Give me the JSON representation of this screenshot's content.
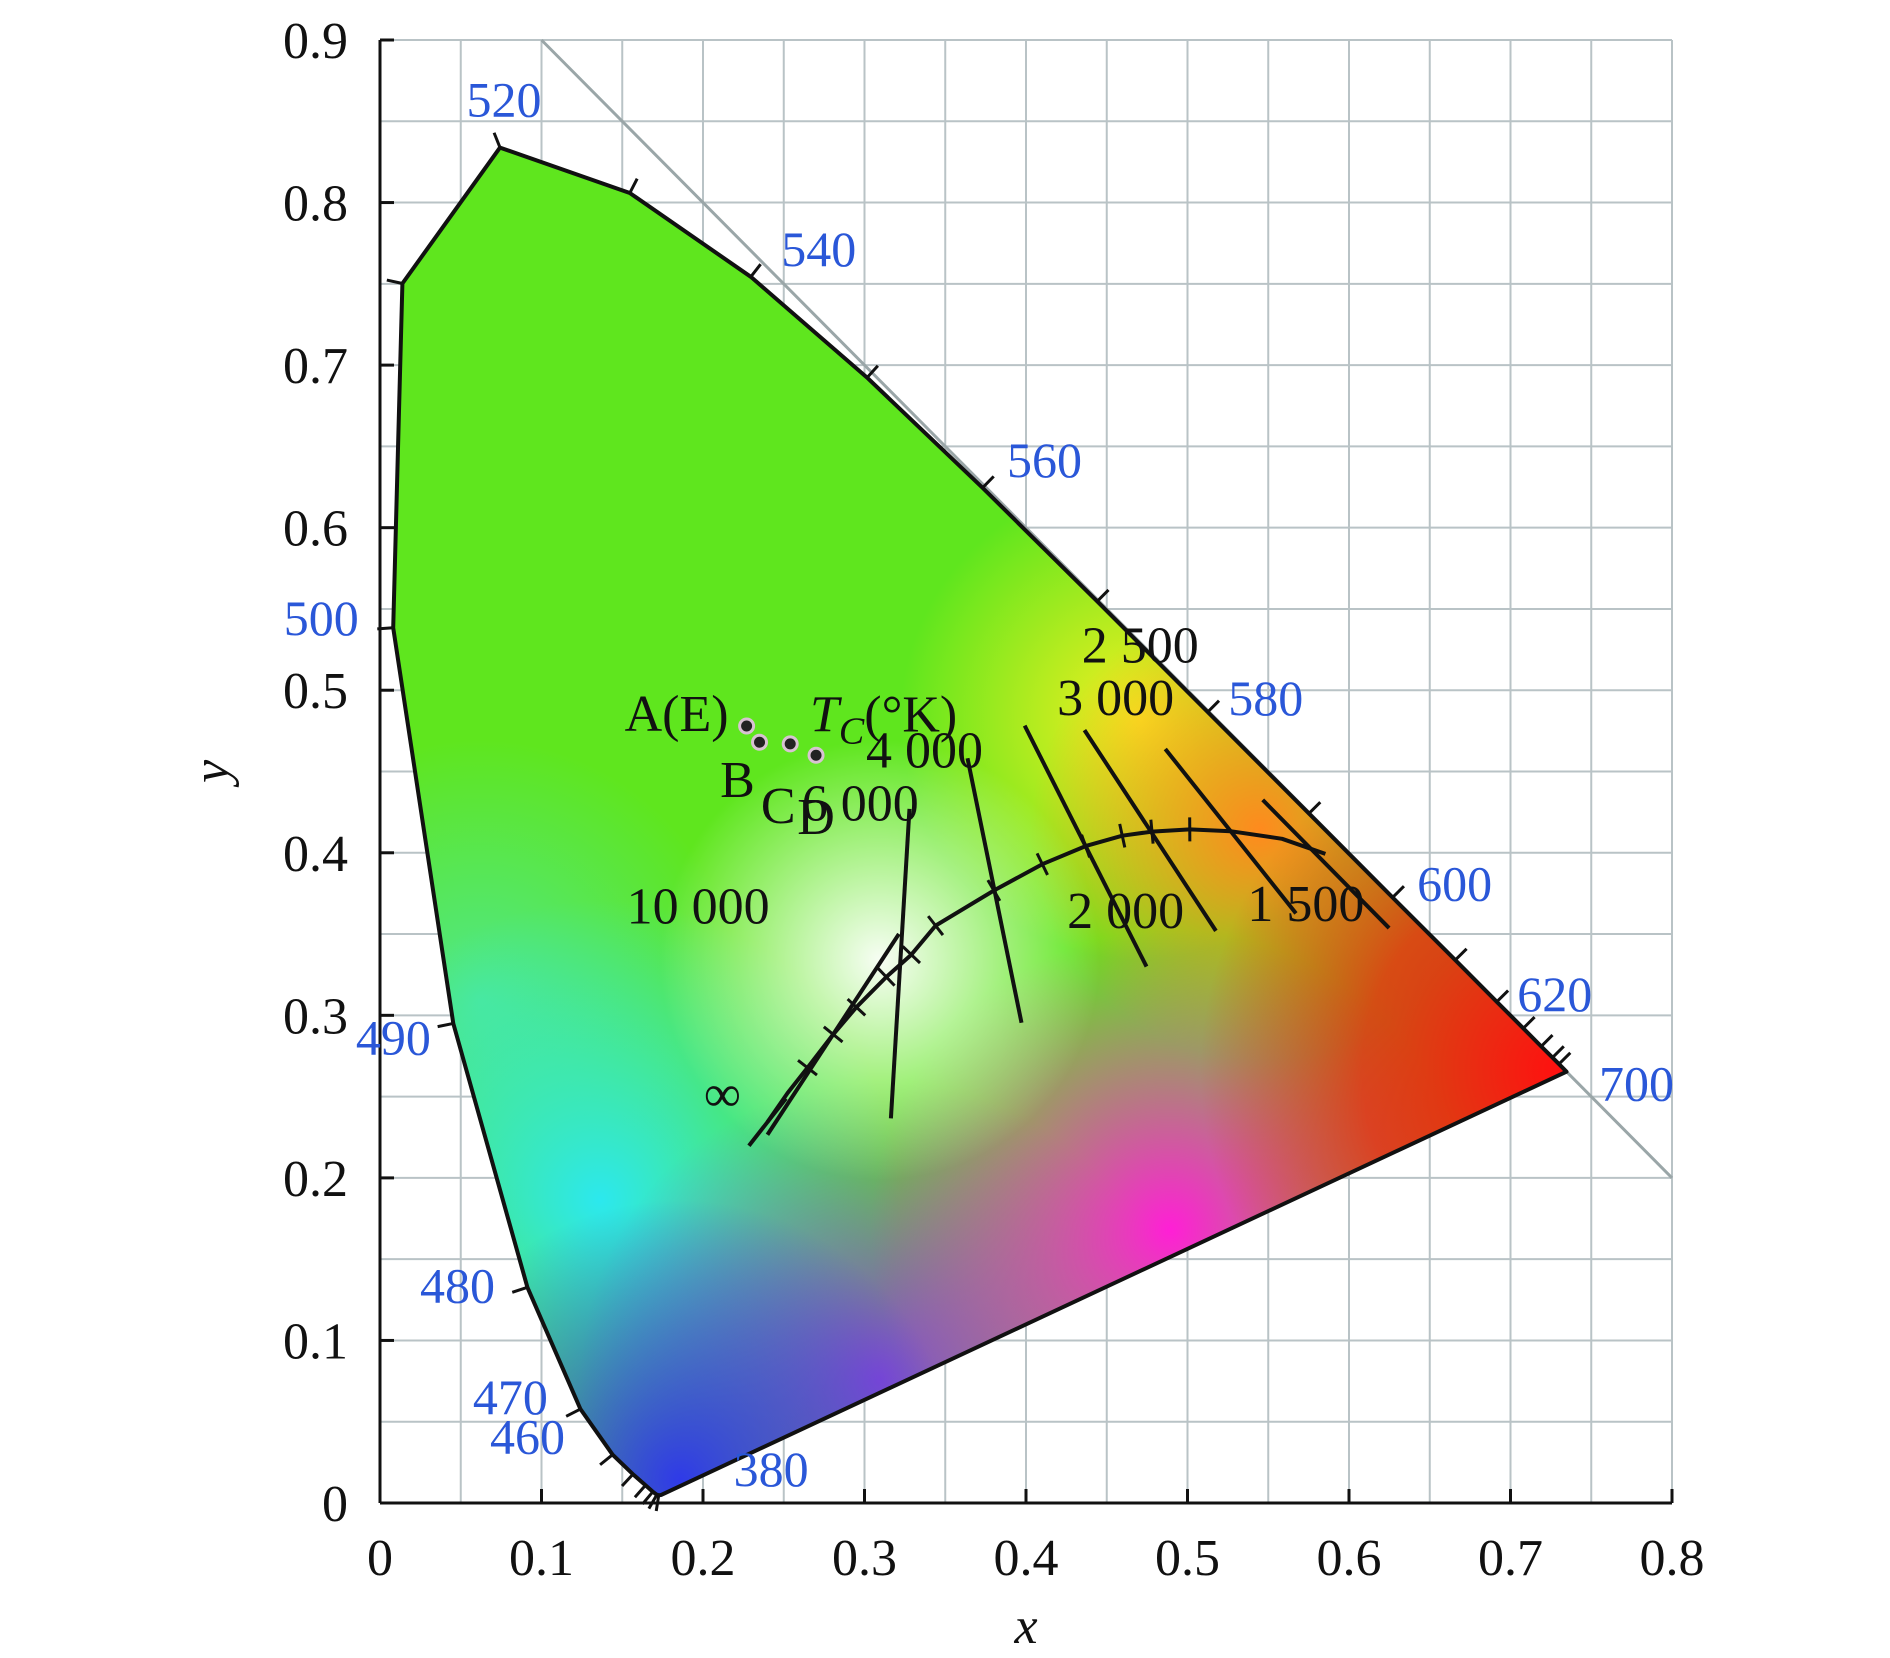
{
  "chart_data": {
    "type": "scatter",
    "title": "",
    "xlabel": "x",
    "ylabel": "y",
    "xlim": [
      0,
      0.8
    ],
    "ylim": [
      0,
      0.9
    ],
    "grid": true,
    "x_ticks": [
      "0",
      "0.1",
      "0.2",
      "0.3",
      "0.4",
      "0.5",
      "0.6",
      "0.7",
      "0.8"
    ],
    "y_ticks": [
      "0",
      "0.1",
      "0.2",
      "0.3",
      "0.4",
      "0.5",
      "0.6",
      "0.7",
      "0.8",
      "0.9"
    ],
    "spectral_locus": [
      [
        0.1741,
        0.005
      ],
      [
        0.1738,
        0.0049
      ],
      [
        0.1736,
        0.0049
      ],
      [
        0.1733,
        0.0048
      ],
      [
        0.1726,
        0.0048
      ],
      [
        0.1714,
        0.0051
      ],
      [
        0.1689,
        0.0069
      ],
      [
        0.1644,
        0.0109
      ],
      [
        0.1566,
        0.0177
      ],
      [
        0.144,
        0.0297
      ],
      [
        0.1241,
        0.0578
      ],
      [
        0.0913,
        0.1327
      ],
      [
        0.0454,
        0.295
      ],
      [
        0.0082,
        0.5384
      ],
      [
        0.0139,
        0.7502
      ],
      [
        0.0743,
        0.8338
      ],
      [
        0.1547,
        0.8059
      ],
      [
        0.2296,
        0.7543
      ],
      [
        0.3016,
        0.6923
      ],
      [
        0.3731,
        0.6245
      ],
      [
        0.4441,
        0.5547
      ],
      [
        0.5125,
        0.4866
      ],
      [
        0.5752,
        0.4242
      ],
      [
        0.627,
        0.3725
      ],
      [
        0.6658,
        0.334
      ],
      [
        0.6915,
        0.3083
      ],
      [
        0.7079,
        0.292
      ],
      [
        0.719,
        0.2809
      ],
      [
        0.726,
        0.274
      ],
      [
        0.73,
        0.27
      ],
      [
        0.7347,
        0.2653
      ]
    ],
    "wavelength_labels": [
      {
        "text": "380",
        "wl": 380,
        "x": 0.1741,
        "y": 0.005
      },
      {
        "text": "460",
        "wl": 460,
        "x": 0.144,
        "y": 0.0297
      },
      {
        "text": "470",
        "wl": 470,
        "x": 0.1241,
        "y": 0.0578
      },
      {
        "text": "480",
        "wl": 480,
        "x": 0.0913,
        "y": 0.1327
      },
      {
        "text": "490",
        "wl": 490,
        "x": 0.0454,
        "y": 0.295
      },
      {
        "text": "500",
        "wl": 500,
        "x": 0.0082,
        "y": 0.5384
      },
      {
        "text": "520",
        "wl": 520,
        "x": 0.0743,
        "y": 0.8338
      },
      {
        "text": "540",
        "wl": 540,
        "x": 0.2296,
        "y": 0.7543
      },
      {
        "text": "560",
        "wl": 560,
        "x": 0.3731,
        "y": 0.6245
      },
      {
        "text": "580",
        "wl": 580,
        "x": 0.5125,
        "y": 0.4866
      },
      {
        "text": "600",
        "wl": 600,
        "x": 0.627,
        "y": 0.3725
      },
      {
        "text": "620",
        "wl": 620,
        "x": 0.6915,
        "y": 0.3083
      },
      {
        "text": "700",
        "wl": 700,
        "x": 0.7347,
        "y": 0.2653
      }
    ],
    "planckian_locus": [
      [
        0.2399,
        0.2343
      ],
      [
        0.2524,
        0.2522
      ],
      [
        0.2647,
        0.2678
      ],
      [
        0.2806,
        0.2883
      ],
      [
        0.295,
        0.305
      ],
      [
        0.3135,
        0.3236
      ],
      [
        0.329,
        0.3373
      ],
      [
        0.344,
        0.3552
      ],
      [
        0.3801,
        0.3768
      ],
      [
        0.4101,
        0.393
      ],
      [
        0.4369,
        0.4041
      ],
      [
        0.4596,
        0.4105
      ],
      [
        0.478,
        0.413
      ],
      [
        0.5014,
        0.4144
      ],
      [
        0.5267,
        0.4133
      ],
      [
        0.5586,
        0.4086
      ],
      [
        0.5854,
        0.3993
      ]
    ],
    "isotherms": [
      {
        "text": "∞",
        "x": 0.2399,
        "y": 0.2343
      },
      {
        "text": "10 000",
        "x": 0.2806,
        "y": 0.2883
      },
      {
        "text": "6 000",
        "x": 0.3221,
        "y": 0.3318
      },
      {
        "text": "4 000",
        "x": 0.3805,
        "y": 0.3768
      },
      {
        "text": "3 000",
        "x": 0.4369,
        "y": 0.4041
      },
      {
        "text": "2 500",
        "x": 0.4769,
        "y": 0.4137
      },
      {
        "text": "2 000",
        "x": 0.5267,
        "y": 0.4133
      },
      {
        "text": "1 500",
        "x": 0.5857,
        "y": 0.3931
      }
    ],
    "illuminants_title": "TC(°K)",
    "illuminants": [
      {
        "text": "A(E)",
        "x": 0.227,
        "y": 0.478
      },
      {
        "text": "B",
        "x": 0.235,
        "y": 0.468
      },
      {
        "text": "C",
        "x": 0.254,
        "y": 0.467
      },
      {
        "text": "D",
        "x": 0.27,
        "y": 0.46
      }
    ]
  }
}
